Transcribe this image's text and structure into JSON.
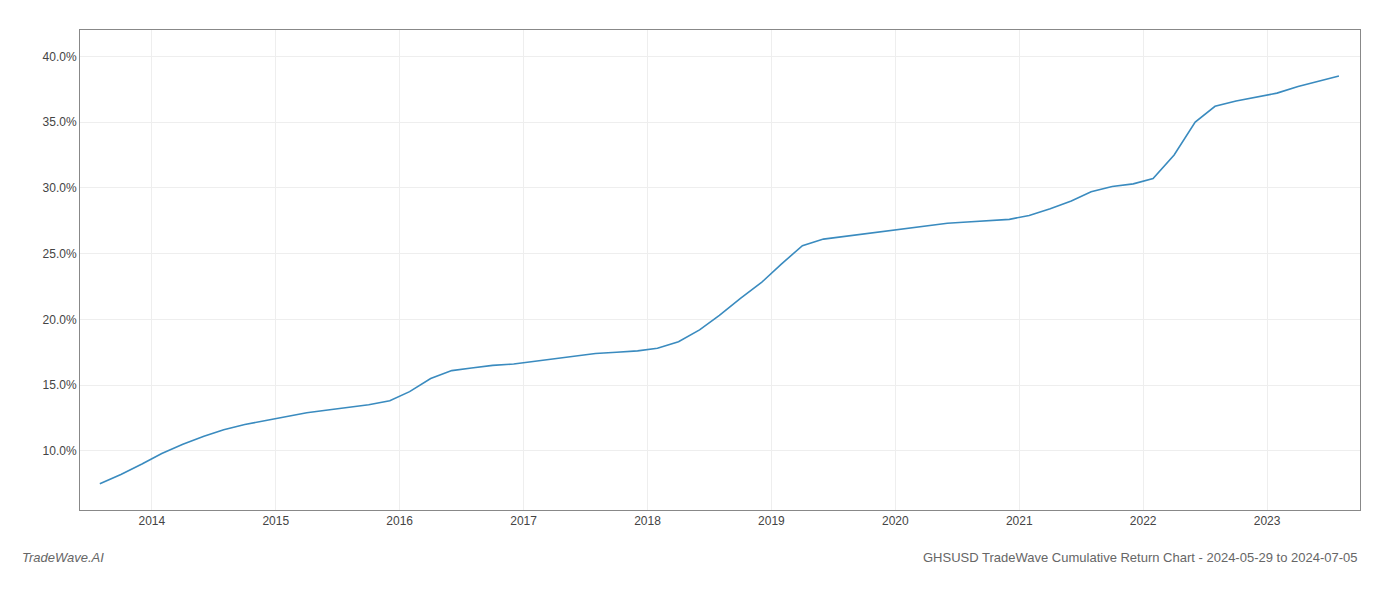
{
  "chart_data": {
    "type": "line",
    "title": "GHSUSD TradeWave Cumulative Return Chart - 2024-05-29 to 2024-07-05",
    "annotations": [
      "TradeWave.AI"
    ],
    "color": "#3a8bbf",
    "x": [
      2013.58,
      2013.75,
      2013.92,
      2014.08,
      2014.25,
      2014.42,
      2014.58,
      2014.75,
      2014.92,
      2015.08,
      2015.25,
      2015.42,
      2015.58,
      2015.75,
      2015.92,
      2016.08,
      2016.25,
      2016.42,
      2016.58,
      2016.75,
      2016.92,
      2017.08,
      2017.25,
      2017.42,
      2017.58,
      2017.75,
      2017.92,
      2018.08,
      2018.25,
      2018.42,
      2018.58,
      2018.75,
      2018.92,
      2019.08,
      2019.25,
      2019.42,
      2019.58,
      2019.75,
      2019.92,
      2020.08,
      2020.25,
      2020.42,
      2020.58,
      2020.75,
      2020.92,
      2021.08,
      2021.25,
      2021.42,
      2021.58,
      2021.75,
      2021.92,
      2022.08,
      2022.25,
      2022.42,
      2022.58,
      2022.75,
      2022.92,
      2023.08,
      2023.25,
      2023.42,
      2023.58
    ],
    "values": [
      7.5,
      8.2,
      9.0,
      9.8,
      10.5,
      11.1,
      11.6,
      12.0,
      12.3,
      12.6,
      12.9,
      13.1,
      13.3,
      13.5,
      13.8,
      14.5,
      15.5,
      16.1,
      16.3,
      16.5,
      16.6,
      16.8,
      17.0,
      17.2,
      17.4,
      17.5,
      17.6,
      17.8,
      18.3,
      19.2,
      20.3,
      21.6,
      22.8,
      24.2,
      25.6,
      26.1,
      26.3,
      26.5,
      26.7,
      26.9,
      27.1,
      27.3,
      27.4,
      27.5,
      27.6,
      27.9,
      28.4,
      29.0,
      29.7,
      30.1,
      30.3,
      30.7,
      32.5,
      35.0,
      36.2,
      36.6,
      36.9,
      37.2,
      37.7,
      38.1,
      38.5
    ],
    "xlim": [
      2013.42,
      2023.75
    ],
    "ylim": [
      5.5,
      42.0
    ],
    "xticks": [
      2014,
      2015,
      2016,
      2017,
      2018,
      2019,
      2020,
      2021,
      2022,
      2023
    ],
    "yticks": [
      {
        "value": 10.0,
        "label": "10.0%"
      },
      {
        "value": 15.0,
        "label": "15.0%"
      },
      {
        "value": 20.0,
        "label": "20.0%"
      },
      {
        "value": 25.0,
        "label": "25.0%"
      },
      {
        "value": 30.0,
        "label": "30.0%"
      },
      {
        "value": 35.0,
        "label": "35.0%"
      },
      {
        "value": 40.0,
        "label": "40.0%"
      }
    ],
    "grid": true
  }
}
